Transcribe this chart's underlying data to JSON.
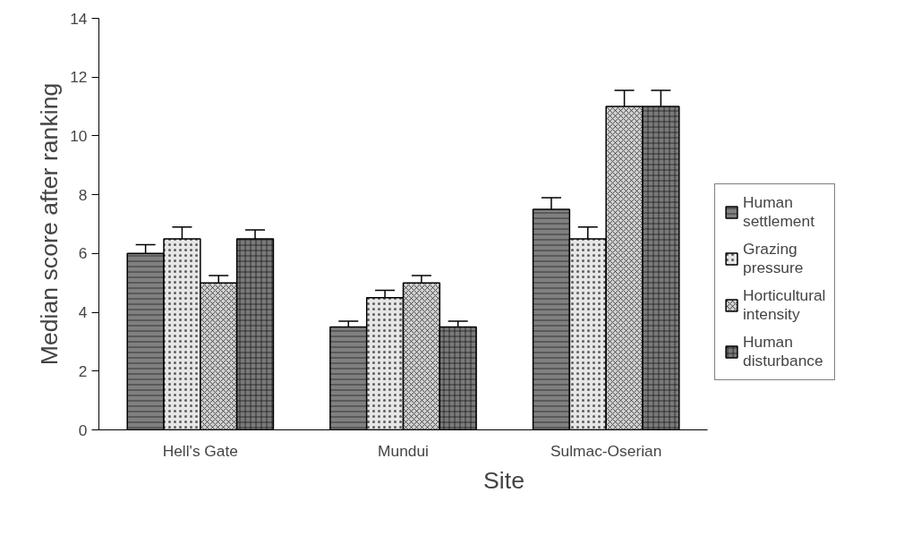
{
  "chart_data": {
    "type": "bar",
    "xlabel": "Site",
    "ylabel": "Median score after ranking",
    "categories": [
      "Hell's Gate",
      "Mundui",
      "Sulmac-Oserian"
    ],
    "series": [
      {
        "name": "Human settlement",
        "color": "#808080",
        "values": [
          6,
          3.5,
          7.5
        ],
        "errors": [
          0.3,
          0.2,
          0.4
        ]
      },
      {
        "name": "Grazing pressure",
        "color": "#e6e6e6",
        "values": [
          6.5,
          4.5,
          6.5
        ],
        "errors": [
          0.4,
          0.25,
          0.4
        ]
      },
      {
        "name": "Horticultural intensity",
        "color": "#d0d0d0",
        "values": [
          5,
          5,
          11
        ],
        "errors": [
          0.25,
          0.25,
          0.55
        ]
      },
      {
        "name": "Human disturbance",
        "color": "#7a7a7a",
        "values": [
          6.5,
          3.5,
          11
        ],
        "errors": [
          0.3,
          0.2,
          0.55
        ]
      }
    ],
    "ylim": [
      0,
      14
    ],
    "yticks": [
      0,
      2,
      4,
      6,
      8,
      10,
      12,
      14
    ],
    "grid": false,
    "legend": "right"
  }
}
